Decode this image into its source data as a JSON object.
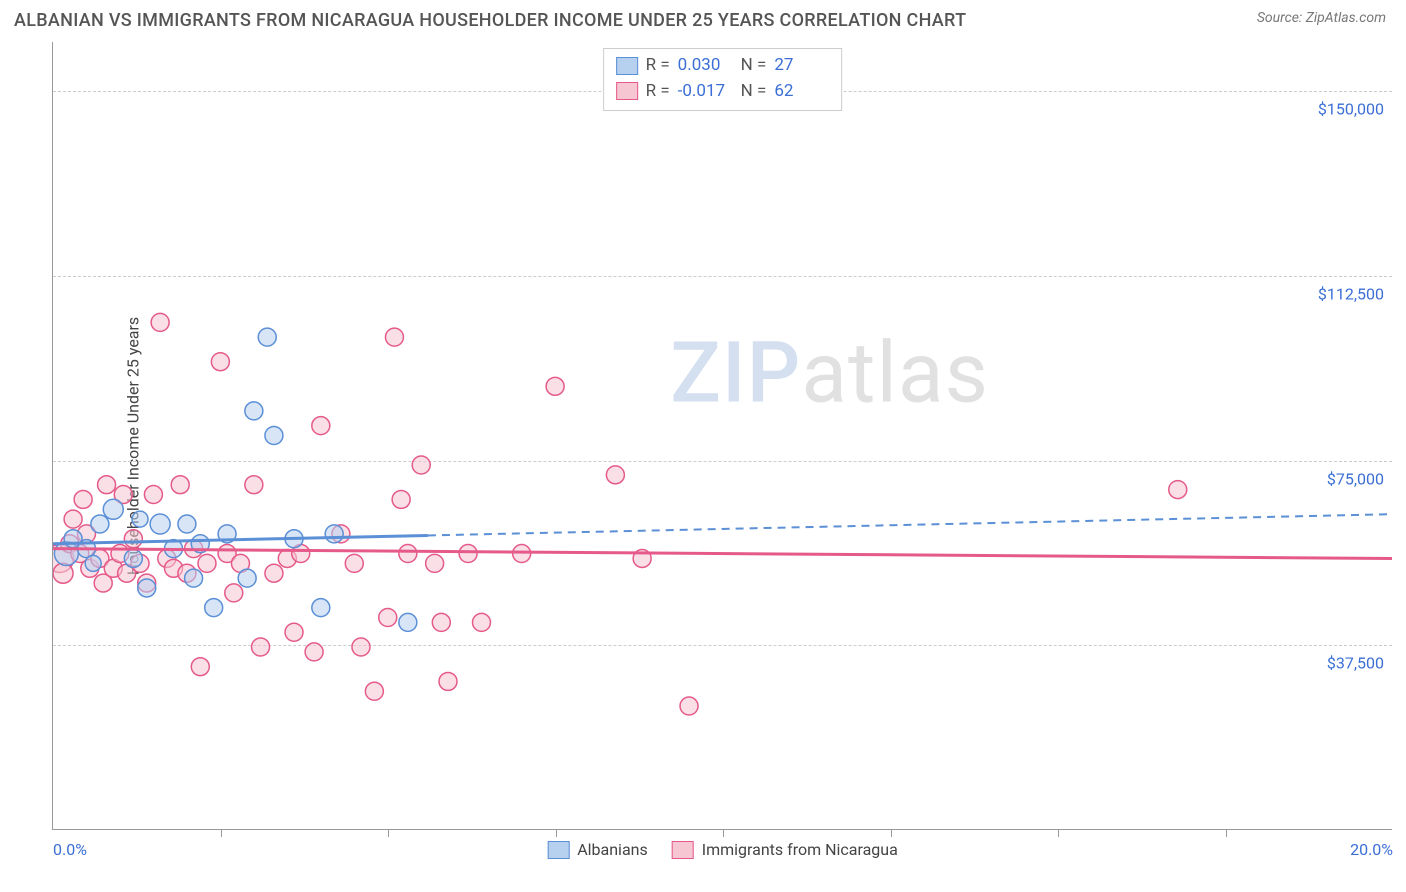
{
  "header": {
    "title": "ALBANIAN VS IMMIGRANTS FROM NICARAGUA HOUSEHOLDER INCOME UNDER 25 YEARS CORRELATION CHART",
    "source_label": "Source: ZipAtlas.com"
  },
  "chart": {
    "type": "scatter-correlation",
    "x_axis": {
      "min": 0.0,
      "max": 20.0,
      "tick_labels": [
        "0.0%",
        "20.0%"
      ],
      "tick_positions_pct": [
        0,
        100
      ],
      "minor_ticks_pct": [
        12.5,
        25,
        37.5,
        50,
        62.5,
        75,
        87.5
      ]
    },
    "y_axis": {
      "label": "Householder Income Under 25 years",
      "min": 0,
      "max": 160000,
      "gridlines": [
        {
          "value": 37500,
          "label": "$37,500"
        },
        {
          "value": 75000,
          "label": "$75,000"
        },
        {
          "value": 112500,
          "label": "$112,500"
        },
        {
          "value": 150000,
          "label": "$150,000"
        }
      ]
    },
    "background_color": "#ffffff",
    "grid_color": "#cccccc",
    "series": [
      {
        "name": "Albanians",
        "fill": "#b6d0f0",
        "stroke": "#5b8fd6",
        "fill_opacity": 0.55,
        "r_value": "0.030",
        "n_value": "27",
        "trend": {
          "x1_pct": 0,
          "y1": 58000,
          "x2_pct": 100,
          "y2": 64000,
          "solid_until_pct": 28
        },
        "points": [
          {
            "x": 0.2,
            "y": 56000,
            "r": 12
          },
          {
            "x": 0.3,
            "y": 59000,
            "r": 9
          },
          {
            "x": 0.5,
            "y": 57000,
            "r": 9
          },
          {
            "x": 0.6,
            "y": 54000,
            "r": 8
          },
          {
            "x": 0.7,
            "y": 62000,
            "r": 9
          },
          {
            "x": 0.9,
            "y": 65000,
            "r": 10
          },
          {
            "x": 1.2,
            "y": 55000,
            "r": 9
          },
          {
            "x": 1.3,
            "y": 63000,
            "r": 8
          },
          {
            "x": 1.4,
            "y": 49000,
            "r": 9
          },
          {
            "x": 1.6,
            "y": 62000,
            "r": 10
          },
          {
            "x": 1.8,
            "y": 57000,
            "r": 9
          },
          {
            "x": 2.0,
            "y": 62000,
            "r": 9
          },
          {
            "x": 2.1,
            "y": 51000,
            "r": 9
          },
          {
            "x": 2.2,
            "y": 58000,
            "r": 9
          },
          {
            "x": 2.4,
            "y": 45000,
            "r": 9
          },
          {
            "x": 2.6,
            "y": 60000,
            "r": 9
          },
          {
            "x": 2.9,
            "y": 51000,
            "r": 9
          },
          {
            "x": 3.0,
            "y": 85000,
            "r": 9
          },
          {
            "x": 3.2,
            "y": 100000,
            "r": 9
          },
          {
            "x": 3.3,
            "y": 80000,
            "r": 9
          },
          {
            "x": 3.6,
            "y": 59000,
            "r": 9
          },
          {
            "x": 4.0,
            "y": 45000,
            "r": 9
          },
          {
            "x": 4.2,
            "y": 60000,
            "r": 9
          },
          {
            "x": 5.3,
            "y": 42000,
            "r": 9
          }
        ]
      },
      {
        "name": "Immigrants from Nicaragua",
        "fill": "#f6c6d2",
        "stroke": "#e55a8a",
        "fill_opacity": 0.55,
        "r_value": "-0.017",
        "n_value": "62",
        "trend": {
          "x1_pct": 0,
          "y1": 57000,
          "x2_pct": 100,
          "y2": 55000,
          "solid_until_pct": 100
        },
        "points": [
          {
            "x": 0.1,
            "y": 55000,
            "r": 14
          },
          {
            "x": 0.15,
            "y": 52000,
            "r": 10
          },
          {
            "x": 0.25,
            "y": 58000,
            "r": 9
          },
          {
            "x": 0.3,
            "y": 63000,
            "r": 9
          },
          {
            "x": 0.4,
            "y": 56000,
            "r": 9
          },
          {
            "x": 0.45,
            "y": 67000,
            "r": 9
          },
          {
            "x": 0.5,
            "y": 60000,
            "r": 9
          },
          {
            "x": 0.55,
            "y": 53000,
            "r": 9
          },
          {
            "x": 0.7,
            "y": 55000,
            "r": 9
          },
          {
            "x": 0.75,
            "y": 50000,
            "r": 9
          },
          {
            "x": 0.8,
            "y": 70000,
            "r": 9
          },
          {
            "x": 0.9,
            "y": 53000,
            "r": 9
          },
          {
            "x": 1.0,
            "y": 56000,
            "r": 9
          },
          {
            "x": 1.05,
            "y": 68000,
            "r": 9
          },
          {
            "x": 1.1,
            "y": 52000,
            "r": 9
          },
          {
            "x": 1.2,
            "y": 59000,
            "r": 9
          },
          {
            "x": 1.3,
            "y": 54000,
            "r": 9
          },
          {
            "x": 1.4,
            "y": 50000,
            "r": 9
          },
          {
            "x": 1.5,
            "y": 68000,
            "r": 9
          },
          {
            "x": 1.6,
            "y": 103000,
            "r": 9
          },
          {
            "x": 1.7,
            "y": 55000,
            "r": 9
          },
          {
            "x": 1.8,
            "y": 53000,
            "r": 9
          },
          {
            "x": 1.9,
            "y": 70000,
            "r": 9
          },
          {
            "x": 2.0,
            "y": 52000,
            "r": 9
          },
          {
            "x": 2.1,
            "y": 57000,
            "r": 9
          },
          {
            "x": 2.2,
            "y": 33000,
            "r": 9
          },
          {
            "x": 2.3,
            "y": 54000,
            "r": 9
          },
          {
            "x": 2.5,
            "y": 95000,
            "r": 9
          },
          {
            "x": 2.6,
            "y": 56000,
            "r": 9
          },
          {
            "x": 2.7,
            "y": 48000,
            "r": 9
          },
          {
            "x": 2.8,
            "y": 54000,
            "r": 9
          },
          {
            "x": 3.0,
            "y": 70000,
            "r": 9
          },
          {
            "x": 3.1,
            "y": 37000,
            "r": 9
          },
          {
            "x": 3.3,
            "y": 52000,
            "r": 9
          },
          {
            "x": 3.5,
            "y": 55000,
            "r": 9
          },
          {
            "x": 3.6,
            "y": 40000,
            "r": 9
          },
          {
            "x": 3.7,
            "y": 56000,
            "r": 9
          },
          {
            "x": 3.9,
            "y": 36000,
            "r": 9
          },
          {
            "x": 4.0,
            "y": 82000,
            "r": 9
          },
          {
            "x": 4.3,
            "y": 60000,
            "r": 9
          },
          {
            "x": 4.5,
            "y": 54000,
            "r": 9
          },
          {
            "x": 4.6,
            "y": 37000,
            "r": 9
          },
          {
            "x": 4.8,
            "y": 28000,
            "r": 9
          },
          {
            "x": 5.0,
            "y": 43000,
            "r": 9
          },
          {
            "x": 5.1,
            "y": 100000,
            "r": 9
          },
          {
            "x": 5.2,
            "y": 67000,
            "r": 9
          },
          {
            "x": 5.3,
            "y": 56000,
            "r": 9
          },
          {
            "x": 5.5,
            "y": 74000,
            "r": 9
          },
          {
            "x": 5.7,
            "y": 54000,
            "r": 9
          },
          {
            "x": 5.8,
            "y": 42000,
            "r": 9
          },
          {
            "x": 5.9,
            "y": 30000,
            "r": 9
          },
          {
            "x": 6.2,
            "y": 56000,
            "r": 9
          },
          {
            "x": 6.4,
            "y": 42000,
            "r": 9
          },
          {
            "x": 7.0,
            "y": 56000,
            "r": 9
          },
          {
            "x": 7.5,
            "y": 90000,
            "r": 9
          },
          {
            "x": 8.4,
            "y": 72000,
            "r": 9
          },
          {
            "x": 8.8,
            "y": 55000,
            "r": 9
          },
          {
            "x": 9.5,
            "y": 25000,
            "r": 9
          },
          {
            "x": 16.8,
            "y": 69000,
            "r": 9
          }
        ]
      }
    ],
    "watermark": {
      "part1": "ZIP",
      "part2": "atlas"
    },
    "legend_bottom": [
      {
        "label": "Albanians",
        "fill": "#b6d0f0",
        "stroke": "#5b8fd6"
      },
      {
        "label": "Immigrants from Nicaragua",
        "fill": "#f6c6d2",
        "stroke": "#e55a8a"
      }
    ]
  }
}
